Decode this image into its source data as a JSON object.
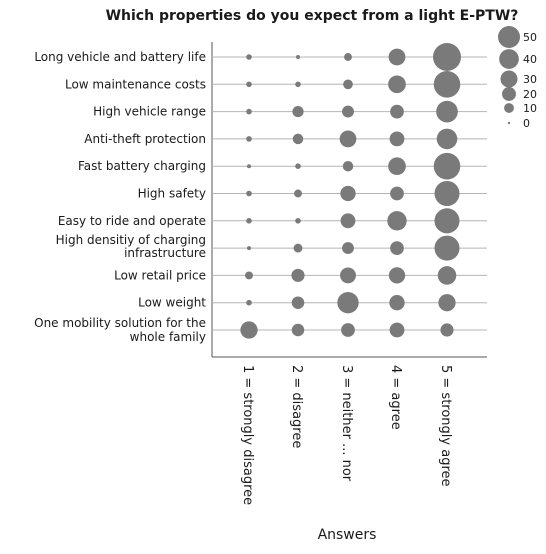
{
  "chart_data": {
    "type": "bubble",
    "title": "Which properties do you expect from a light E-PTW?",
    "xlabel": "Answers",
    "ylabel": "",
    "grid": true,
    "legend_position": "top-right",
    "x_categories": [
      "1 = strongly disagree",
      "2 = disagree",
      "3 = neither ... nor",
      "4 = agree",
      "5 = strongly agree"
    ],
    "y_categories": [
      "Long vehicle and battery life",
      "Low maintenance costs",
      "High vehicle range",
      "Anti-theft protection",
      "Fast battery charging",
      "High safety",
      "Easy to ride and operate",
      "High densitiy of charging infrastructure",
      "Low retail price",
      "Low weight",
      "One mobility solution for the whole family"
    ],
    "values": [
      [
        2,
        1,
        4,
        18,
        50
      ],
      [
        2,
        2,
        6,
        20,
        45
      ],
      [
        2,
        8,
        9,
        12,
        30
      ],
      [
        2,
        7,
        18,
        14,
        27
      ],
      [
        1,
        2,
        7,
        20,
        45
      ],
      [
        2,
        4,
        15,
        12,
        40
      ],
      [
        2,
        2,
        14,
        24,
        40
      ],
      [
        1,
        5,
        9,
        12,
        40
      ],
      [
        4,
        11,
        16,
        17,
        22
      ],
      [
        2,
        10,
        29,
        15,
        19
      ],
      [
        19,
        10,
        12,
        14,
        11
      ]
    ],
    "legend": {
      "sizes": [
        50,
        40,
        30,
        20,
        10,
        0
      ],
      "labels": [
        "50",
        "40",
        "30",
        "20",
        "10",
        "0"
      ]
    },
    "colors": {
      "bubble": "#7a7a7a",
      "grid": "#b5b5b5",
      "axis": "#555555"
    }
  }
}
